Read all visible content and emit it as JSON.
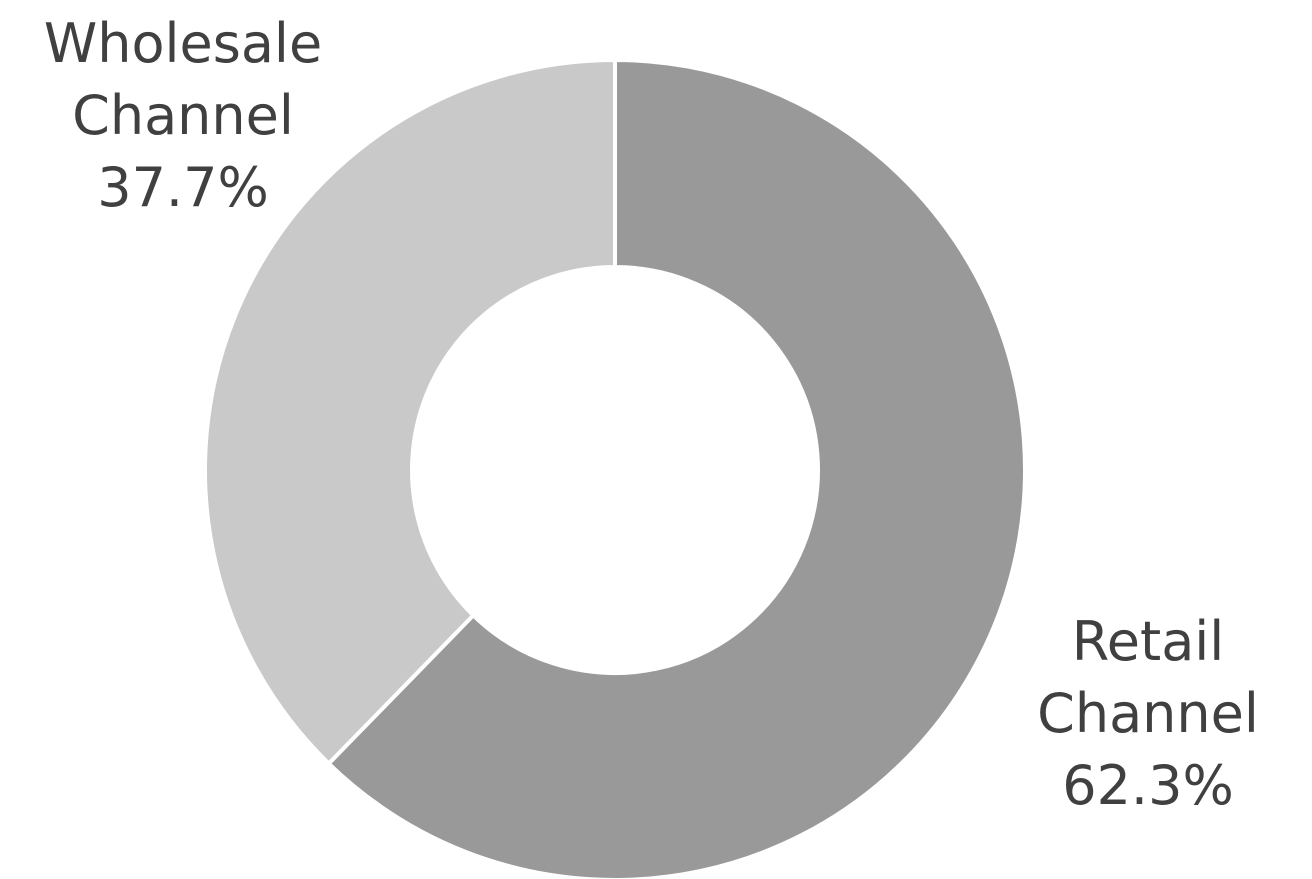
{
  "chart_data": {
    "type": "pie",
    "donut": true,
    "categories": [
      "Retail Channel",
      "Wholesale Channel"
    ],
    "values": [
      62.3,
      37.7
    ],
    "labels": [
      {
        "lines": [
          "Retail",
          "Channel",
          "62.3%"
        ]
      },
      {
        "lines": [
          "Wholesale",
          "Channel",
          "37.7%"
        ]
      }
    ],
    "colors": [
      "#999999",
      "#c9c9c9"
    ],
    "start_angle_deg": 0,
    "direction": "clockwise",
    "title": "",
    "legend": "none"
  }
}
